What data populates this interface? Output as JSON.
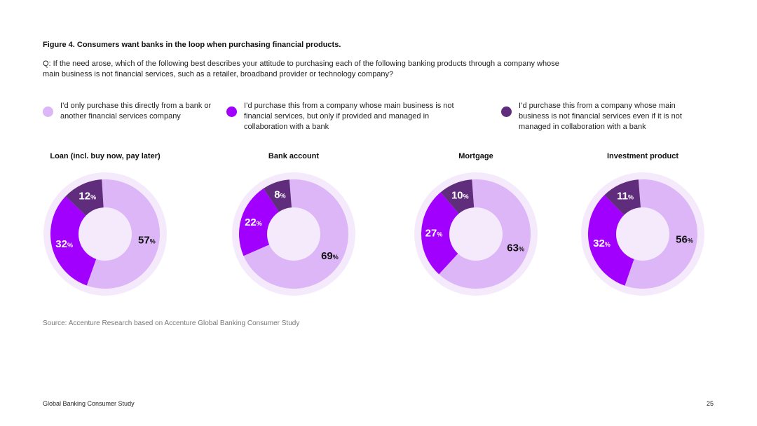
{
  "figure_title": "Figure 4. Consumers want banks in the loop when purchasing financial products.",
  "question": "Q: If the need arose, which of the following best describes your attitude to purchasing each of the following banking products through a company whose main business is not financial services, such as a retailer, broadband provider or technology company?",
  "legend": [
    {
      "label": "I’d only purchase this directly from a bank or another financial services company",
      "color": "#dcb6f7"
    },
    {
      "label": "I’d purchase this from a company whose main business is not financial services, but only if provided and managed in collaboration with a bank",
      "color": "#a100ff"
    },
    {
      "label": "I’d purchase this from a company whose main business is not financial services even if it is not managed in collaboration with a bank",
      "color": "#5f2d7c"
    }
  ],
  "chart_data": [
    {
      "type": "pie",
      "title": "Loan (incl. buy now, pay later)",
      "categories": [
        "I’d only purchase this directly from a bank or another financial services company",
        "I’d purchase this from a company whose main business is not financial services, but only if provided and managed in collaboration with a bank",
        "I’d purchase this from a company whose main business is not financial services even if it is not managed in collaboration with a bank"
      ],
      "values": [
        57,
        32,
        12
      ],
      "display": [
        "57",
        "32",
        "12"
      ]
    },
    {
      "type": "pie",
      "title": "Bank account",
      "categories": [
        "I’d only purchase this directly from a bank or another financial services company",
        "I’d purchase this from a company whose main business is not financial services, but only if provided and managed in collaboration with a bank",
        "I’d purchase this from a company whose main business is not financial services even if it is not managed in collaboration with a bank"
      ],
      "values": [
        69,
        22,
        8
      ],
      "display": [
        "69",
        "22",
        "8"
      ]
    },
    {
      "type": "pie",
      "title": "Mortgage",
      "categories": [
        "I’d only purchase this directly from a bank or another financial services company",
        "I’d purchase this from a company whose main business is not financial services, but only if provided and managed in collaboration with a bank",
        "I’d purchase this from a company whose main business is not financial services even if it is not managed in collaboration with a bank"
      ],
      "values": [
        63,
        27,
        10
      ],
      "display": [
        "63",
        "27",
        "10"
      ]
    },
    {
      "type": "pie",
      "title": "Investment product",
      "categories": [
        "I’d only purchase this directly from a bank or another financial services company",
        "I’d purchase this from a company whose main business is not financial services, but only if provided and managed in collaboration with a bank",
        "I’d purchase this from a company whose main business is not financial services even if it is not managed in collaboration with a bank"
      ],
      "values": [
        56,
        32,
        11
      ],
      "display": [
        "56",
        "32",
        "11"
      ]
    }
  ],
  "percent_sign": "%",
  "source": "Source: Accenture Research based on Accenture Global Banking Consumer Study",
  "footer": {
    "left": "Global Banking Consumer Study",
    "page": "25"
  },
  "colors": {
    "ring_bg": "#f4eafc",
    "label_dark": "#111111",
    "label_light": "#ffffff"
  }
}
